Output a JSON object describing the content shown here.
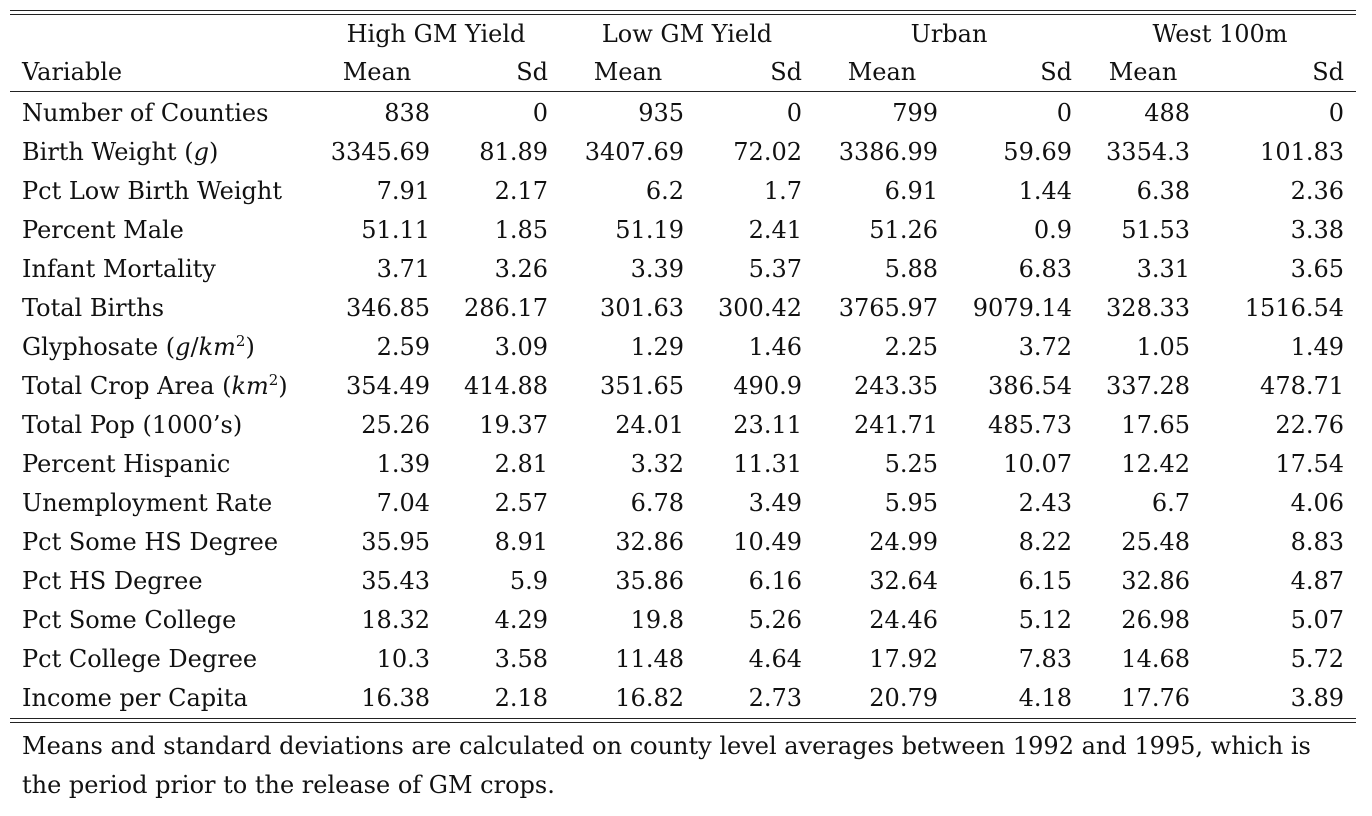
{
  "table": {
    "groups": [
      "High GM Yield",
      "Low GM Yield",
      "Urban",
      "West 100m"
    ],
    "variable_header": "Variable",
    "sub_headers": [
      "Mean",
      "Sd",
      "Mean",
      "Sd",
      "Mean",
      "Sd",
      "Mean",
      "Sd"
    ],
    "rows": [
      {
        "label": "Number of Counties",
        "values": [
          "838",
          "0",
          "935",
          "0",
          "799",
          "0",
          "488",
          "0"
        ]
      },
      {
        "label": "Birth Weight (g)",
        "values": [
          "3345.69",
          "81.89",
          "3407.69",
          "72.02",
          "3386.99",
          "59.69",
          "3354.3",
          "101.83"
        ]
      },
      {
        "label": "Pct Low Birth Weight",
        "values": [
          "7.91",
          "2.17",
          "6.2",
          "1.7",
          "6.91",
          "1.44",
          "6.38",
          "2.36"
        ]
      },
      {
        "label": "Percent Male",
        "values": [
          "51.11",
          "1.85",
          "51.19",
          "2.41",
          "51.26",
          "0.9",
          "51.53",
          "3.38"
        ]
      },
      {
        "label": "Infant Mortality",
        "values": [
          "3.71",
          "3.26",
          "3.39",
          "5.37",
          "5.88",
          "6.83",
          "3.31",
          "3.65"
        ]
      },
      {
        "label": "Total Births",
        "values": [
          "346.85",
          "286.17",
          "301.63",
          "300.42",
          "3765.97",
          "9079.14",
          "328.33",
          "1516.54"
        ]
      },
      {
        "label": "Glyphosate (g/km2)",
        "values": [
          "2.59",
          "3.09",
          "1.29",
          "1.46",
          "2.25",
          "3.72",
          "1.05",
          "1.49"
        ]
      },
      {
        "label": "Total Crop Area (km2)",
        "values": [
          "354.49",
          "414.88",
          "351.65",
          "490.9",
          "243.35",
          "386.54",
          "337.28",
          "478.71"
        ]
      },
      {
        "label": "Total Pop (1000’s)",
        "values": [
          "25.26",
          "19.37",
          "24.01",
          "23.11",
          "241.71",
          "485.73",
          "17.65",
          "22.76"
        ]
      },
      {
        "label": "Percent Hispanic",
        "values": [
          "1.39",
          "2.81",
          "3.32",
          "11.31",
          "5.25",
          "10.07",
          "12.42",
          "17.54"
        ]
      },
      {
        "label": "Unemployment Rate",
        "values": [
          "7.04",
          "2.57",
          "6.78",
          "3.49",
          "5.95",
          "2.43",
          "6.7",
          "4.06"
        ]
      },
      {
        "label": "Pct Some HS Degree",
        "values": [
          "35.95",
          "8.91",
          "32.86",
          "10.49",
          "24.99",
          "8.22",
          "25.48",
          "8.83"
        ]
      },
      {
        "label": "Pct HS Degree",
        "values": [
          "35.43",
          "5.9",
          "35.86",
          "6.16",
          "32.64",
          "6.15",
          "32.86",
          "4.87"
        ]
      },
      {
        "label": "Pct Some College",
        "values": [
          "18.32",
          "4.29",
          "19.8",
          "5.26",
          "24.46",
          "5.12",
          "26.98",
          "5.07"
        ]
      },
      {
        "label": "Pct College Degree",
        "values": [
          "10.3",
          "3.58",
          "11.48",
          "4.64",
          "17.92",
          "7.83",
          "14.68",
          "5.72"
        ]
      },
      {
        "label": "Income per Capita",
        "values": [
          "16.38",
          "2.18",
          "16.82",
          "2.73",
          "20.79",
          "4.18",
          "17.76",
          "3.89"
        ]
      }
    ]
  },
  "note": "Means and standard deviations are calculated on county level averages between 1992 and 1995, which is the period prior to the release of GM crops."
}
